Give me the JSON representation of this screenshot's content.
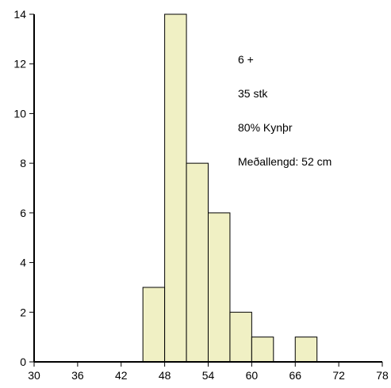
{
  "chart_data": {
    "type": "bar",
    "title": "",
    "xlabel": "",
    "ylabel": "",
    "xlim": [
      30,
      78
    ],
    "ylim": [
      0,
      14
    ],
    "x_ticks": [
      30,
      36,
      42,
      48,
      54,
      60,
      66,
      72,
      78
    ],
    "y_ticks": [
      0,
      2,
      4,
      6,
      8,
      10,
      12,
      14
    ],
    "bin_width": 3,
    "bars": [
      {
        "start": 45,
        "end": 48,
        "value": 3
      },
      {
        "start": 48,
        "end": 51,
        "value": 14
      },
      {
        "start": 51,
        "end": 54,
        "value": 8
      },
      {
        "start": 54,
        "end": 57,
        "value": 6
      },
      {
        "start": 57,
        "end": 60,
        "value": 2
      },
      {
        "start": 60,
        "end": 63,
        "value": 1
      },
      {
        "start": 66,
        "end": 69,
        "value": 1
      }
    ],
    "grid": false,
    "annotations": [
      "6 +",
      "35 stk",
      "80% Kynþr",
      "Meðallengd: 52 cm"
    ]
  }
}
